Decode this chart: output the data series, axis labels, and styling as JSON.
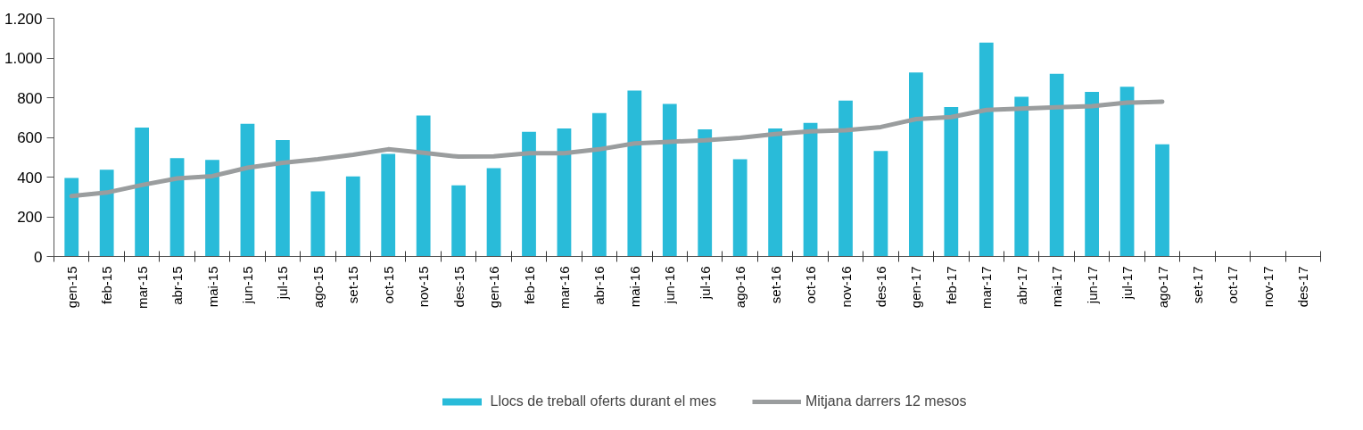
{
  "chart_data": {
    "type": "bar",
    "categories": [
      "gen-15",
      "feb-15",
      "mar-15",
      "abr-15",
      "mai-15",
      "jun-15",
      "jul-15",
      "ago-15",
      "set-15",
      "oct-15",
      "nov-15",
      "des-15",
      "gen-16",
      "feb-16",
      "mar-16",
      "abr-16",
      "mai-16",
      "jun-16",
      "jul-16",
      "ago-16",
      "set-16",
      "oct-16",
      "nov-16",
      "des-16",
      "gen-17",
      "feb-17",
      "mar-17",
      "abr-17",
      "mai-17",
      "jun-17",
      "jul-17",
      "ago-17",
      "set-17",
      "oct-17",
      "nov-17",
      "des-17"
    ],
    "series": [
      {
        "name": "Llocs de treball oferts durant el mes",
        "color": "#29bbd9",
        "values": [
          395,
          437,
          650,
          495,
          487,
          668,
          587,
          328,
          403,
          517,
          710,
          358,
          445,
          628,
          645,
          722,
          836,
          768,
          641,
          490,
          645,
          673,
          785,
          532,
          927,
          753,
          1078,
          805,
          920,
          829,
          855,
          565,
          null,
          null,
          null,
          null
        ]
      },
      {
        "name": "Mitjana darrers 12 mesos",
        "type": "line",
        "color": "#9a9d9e",
        "values": [
          305,
          322,
          360,
          393,
          405,
          447,
          472,
          490,
          512,
          540,
          522,
          503,
          505,
          520,
          520,
          540,
          570,
          578,
          585,
          598,
          617,
          630,
          636,
          652,
          692,
          702,
          738,
          745,
          752,
          757,
          775,
          780,
          null,
          null,
          null,
          null
        ]
      }
    ],
    "ylim": [
      0,
      1200
    ],
    "yticks": [
      0,
      200,
      400,
      600,
      800,
      {
        "value": 1000,
        "label": "1.000"
      },
      {
        "value": 1200,
        "label": "1.200"
      }
    ],
    "grid": false,
    "legend": "bottom",
    "line_style": "solid"
  }
}
